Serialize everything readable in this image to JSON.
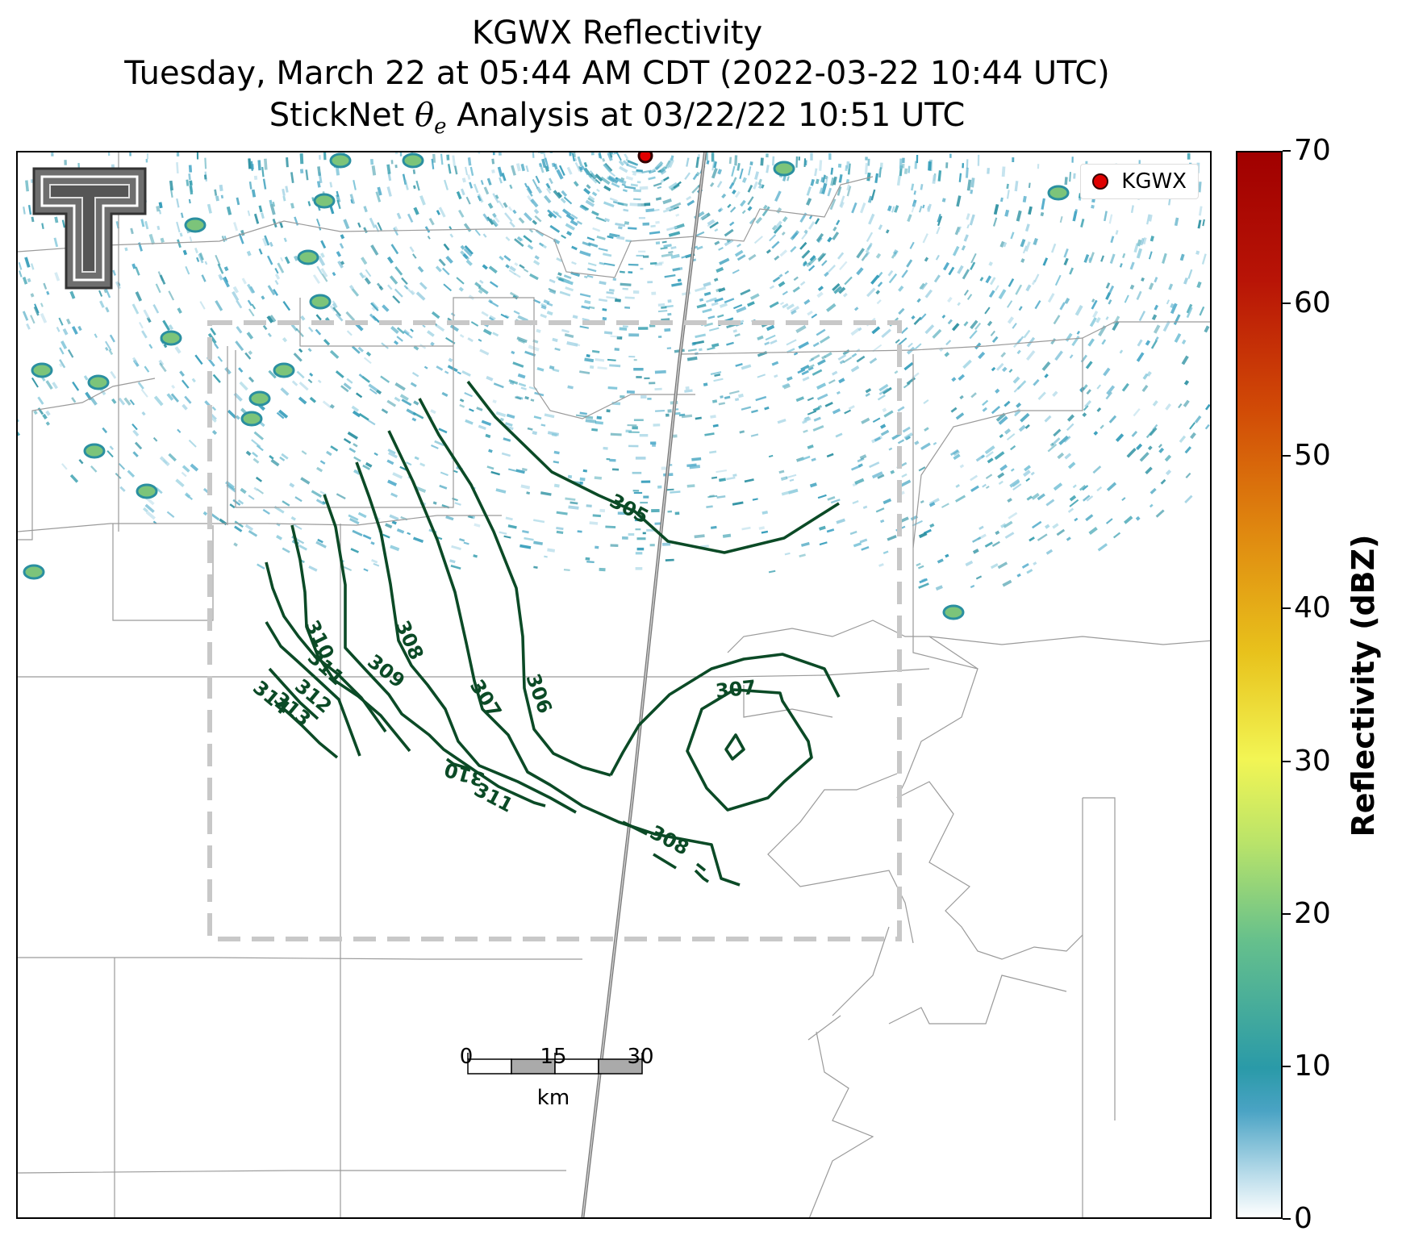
{
  "title": {
    "line1": "KGWX Reflectivity",
    "line2": "Tuesday, March 22 at 05:44 AM CDT (2022-03-22 10:44 UTC)",
    "line3_prefix": "StickNet ",
    "line3_symbol": "θ",
    "line3_subscript": "e",
    "line3_suffix": " Analysis at 03/22/22 10:51 UTC"
  },
  "legend": {
    "label": "KGWX",
    "marker_color": "#e00000"
  },
  "colorbar": {
    "label": "Reflectivity (dBZ)",
    "ticks": [
      "70",
      "60",
      "50",
      "40",
      "30",
      "20",
      "10",
      "0"
    ],
    "range": [
      0,
      70
    ]
  },
  "scale_bar": {
    "ticks": [
      "0",
      "15",
      "30"
    ],
    "unit": "km"
  },
  "contour_color": "#0b4a26",
  "contours": {
    "labels": [
      "305",
      "306",
      "307",
      "307",
      "308",
      "308",
      "309",
      "310",
      "311",
      "312",
      "313",
      "314",
      "310",
      "311",
      "308"
    ]
  },
  "logo": {
    "name": "Texas Tech double-T logo"
  }
}
